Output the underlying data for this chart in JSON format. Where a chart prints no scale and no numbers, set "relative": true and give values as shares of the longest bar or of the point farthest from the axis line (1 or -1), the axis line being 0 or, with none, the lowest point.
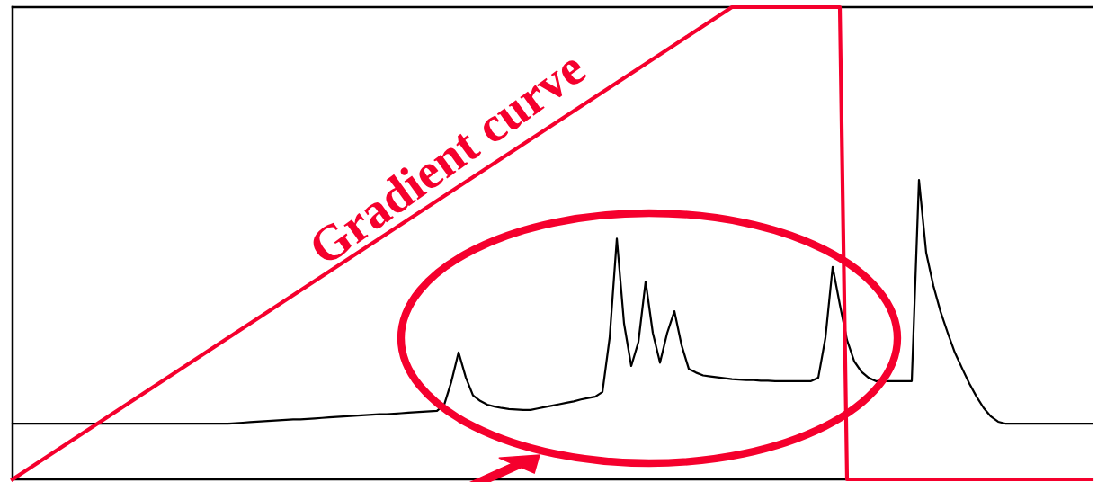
{
  "chart_data": {
    "type": "line",
    "relative": true,
    "legend": false,
    "marker": "none",
    "line_style": "solid",
    "annotations": [
      "Gradient curve"
    ],
    "categories": [
      null,
      null,
      null,
      null,
      null,
      null,
      null,
      null,
      null,
      null,
      null,
      null,
      null,
      null,
      null,
      null,
      null,
      null,
      null,
      null,
      null,
      null,
      null,
      null,
      null,
      null,
      null,
      null,
      null,
      null,
      null,
      null,
      null,
      null,
      null,
      null,
      null,
      null,
      null,
      null,
      null,
      null,
      null,
      null,
      null,
      null,
      null,
      null,
      null,
      null,
      null,
      null,
      null,
      null,
      null,
      null,
      null,
      null,
      null,
      null,
      null,
      null,
      null,
      null,
      null,
      null,
      null,
      null,
      null,
      null,
      null,
      null,
      null,
      null,
      null,
      null,
      null,
      null,
      null,
      null,
      null,
      null,
      null,
      null,
      null,
      null,
      null,
      null,
      null,
      null,
      null,
      null,
      null,
      null,
      null,
      null,
      null,
      null,
      null,
      null,
      null,
      null,
      null,
      null,
      null,
      null,
      null,
      null,
      null,
      null,
      null,
      null,
      null,
      null,
      null,
      null,
      null,
      null,
      null,
      null,
      null,
      null,
      null,
      null,
      null,
      null,
      null,
      null,
      null,
      null,
      null,
      null,
      null,
      null,
      null,
      null,
      null,
      null,
      null,
      null,
      null,
      null,
      null,
      null,
      null,
      null,
      null,
      null,
      null,
      null,
      null
    ],
    "series": [
      {
        "color": "#000000",
        "values": [
          0.118,
          0.118,
          0.118,
          0.118,
          0.118,
          0.118,
          0.118,
          0.118,
          0.118,
          0.118,
          0.118,
          0.118,
          0.118,
          0.118,
          0.118,
          0.118,
          0.118,
          0.118,
          0.118,
          0.118,
          0.118,
          0.118,
          0.118,
          0.118,
          0.118,
          0.118,
          0.118,
          0.118,
          0.118,
          0.118,
          0.118,
          0.119,
          0.12,
          0.121,
          0.122,
          0.123,
          0.124,
          0.125,
          0.126,
          0.127,
          0.127,
          0.128,
          0.129,
          0.13,
          0.131,
          0.132,
          0.133,
          0.134,
          0.135,
          0.136,
          0.137,
          0.138,
          0.138,
          0.139,
          0.14,
          0.141,
          0.142,
          0.143,
          0.144,
          0.145,
          0.158,
          0.207,
          0.269,
          0.216,
          0.178,
          0.166,
          0.158,
          0.154,
          0.151,
          0.149,
          0.148,
          0.147,
          0.147,
          0.15,
          0.153,
          0.156,
          0.159,
          0.162,
          0.165,
          0.169,
          0.172,
          0.175,
          0.185,
          0.3,
          0.51,
          0.33,
          0.24,
          0.291,
          0.419,
          0.31,
          0.247,
          0.31,
          0.356,
          0.284,
          0.234,
          0.226,
          0.22,
          0.218,
          0.216,
          0.214,
          0.212,
          0.211,
          0.21,
          0.21,
          0.209,
          0.209,
          0.208,
          0.208,
          0.208,
          0.208,
          0.208,
          0.208,
          0.215,
          0.3,
          0.45,
          0.37,
          0.295,
          0.25,
          0.228,
          0.215,
          0.208,
          0.208,
          0.208,
          0.208,
          0.208,
          0.208,
          0.634,
          0.48,
          0.41,
          0.355,
          0.31,
          0.268,
          0.235,
          0.203,
          0.175,
          0.151,
          0.133,
          0.122,
          0.118,
          0.118,
          0.118,
          0.118,
          0.118,
          0.118,
          0.118,
          0.118,
          0.118,
          0.118,
          0.118,
          0.118,
          0.118
        ]
      },
      {
        "color": "#f5002d",
        "values": [
          0,
          0.01,
          0.02,
          0.03,
          0.04,
          0.05,
          0.06,
          0.07,
          0.08,
          0.09,
          0.1,
          0.11,
          0.12,
          0.13,
          0.14,
          0.15,
          0.16,
          0.17,
          0.18,
          0.19,
          0.2,
          0.21,
          0.22,
          0.23,
          0.24,
          0.25,
          0.26,
          0.27,
          0.28,
          0.29,
          0.3,
          0.31,
          0.32,
          0.33,
          0.34,
          0.35,
          0.36,
          0.37,
          0.38,
          0.39,
          0.4,
          0.41,
          0.42,
          0.43,
          0.44,
          0.45,
          0.46,
          0.47,
          0.48,
          0.49,
          0.5,
          0.51,
          0.52,
          0.53,
          0.54,
          0.55,
          0.56,
          0.57,
          0.58,
          0.59,
          0.6,
          0.61,
          0.62,
          0.63,
          0.64,
          0.65,
          0.66,
          0.67,
          0.68,
          0.69,
          0.7,
          0.71,
          0.72,
          0.73,
          0.74,
          0.75,
          0.76,
          0.77,
          0.78,
          0.79,
          0.8,
          0.81,
          0.82,
          0.83,
          0.84,
          0.85,
          0.86,
          0.87,
          0.88,
          0.89,
          0.9,
          0.91,
          0.92,
          0.93,
          0.94,
          0.95,
          0.96,
          0.97,
          0.98,
          0.99,
          1,
          1,
          1,
          1,
          1,
          1,
          1,
          1,
          1,
          1,
          1,
          1,
          1,
          1,
          1,
          1,
          0,
          0,
          0,
          0,
          0,
          0,
          0,
          0,
          0,
          0,
          0,
          0,
          0,
          0,
          0,
          0,
          0,
          0,
          0,
          0,
          0,
          0,
          0,
          0,
          0,
          0,
          0,
          0,
          0,
          0,
          0,
          0,
          0,
          0,
          0
        ]
      }
    ]
  }
}
